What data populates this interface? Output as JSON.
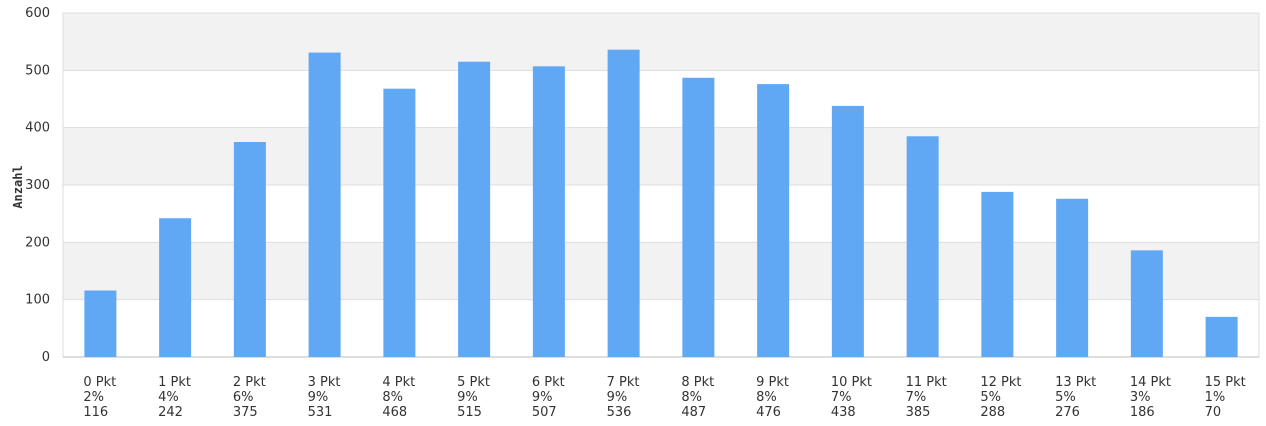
{
  "chart_data": {
    "type": "bar",
    "ylabel": "Anzahl",
    "ylim": [
      0,
      600
    ],
    "yticks": [
      0,
      100,
      200,
      300,
      400,
      500,
      600
    ],
    "grid": true,
    "bar_color": "#60a8f4",
    "band_color": "#f2f2f2",
    "grid_color": "#dddddd",
    "categories": [
      "0 Pkt",
      "1 Pkt",
      "2 Pkt",
      "3 Pkt",
      "4 Pkt",
      "5 Pkt",
      "6 Pkt",
      "7 Pkt",
      "8 Pkt",
      "9 Pkt",
      "10 Pkt",
      "11 Pkt",
      "12 Pkt",
      "13 Pkt",
      "14 Pkt",
      "15 Pkt"
    ],
    "percents": [
      "2%",
      "4%",
      "6%",
      "9%",
      "8%",
      "9%",
      "9%",
      "9%",
      "8%",
      "8%",
      "7%",
      "7%",
      "5%",
      "5%",
      "3%",
      "1%"
    ],
    "values": [
      116,
      242,
      375,
      531,
      468,
      515,
      507,
      536,
      487,
      476,
      438,
      385,
      288,
      276,
      186,
      70
    ]
  }
}
